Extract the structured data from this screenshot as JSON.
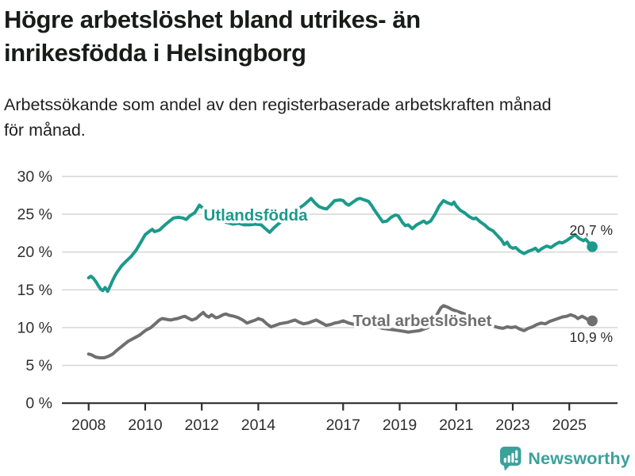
{
  "header": {
    "title": "Högre arbetslöshet bland utrikes- än\ninrikesfödda i Helsingborg",
    "subtitle": "Arbetssökande som andel av den registerbaserade arbetskraften månad\nför månad."
  },
  "chart_data": {
    "type": "line",
    "title": "Högre arbetslöshet bland utrikes- än inrikesfödda i Helsingborg",
    "subtitle": "Arbetssökande som andel av den registerbaserade arbetskraften månad för månad.",
    "grid": "horizontal",
    "legend_position": "inline-labels",
    "x_axis": {
      "ticks": [
        2008,
        2010,
        2012,
        2014,
        2017,
        2019,
        2021,
        2023,
        2025
      ],
      "range": [
        2007.1,
        2026.7
      ]
    },
    "y_axis": {
      "unit": "%",
      "range": [
        0,
        30
      ],
      "ticks": [
        {
          "value": 30,
          "label": "30 %"
        },
        {
          "value": 25,
          "label": "25 %"
        },
        {
          "value": 20,
          "label": "20 %"
        },
        {
          "value": 15,
          "label": "15 %"
        },
        {
          "value": 10,
          "label": "10 %"
        },
        {
          "value": 5,
          "label": "5 %"
        },
        {
          "value": 0,
          "label": "0 %"
        }
      ]
    },
    "series": [
      {
        "name": "Utlandsfödda",
        "color": "#1b9a8b",
        "end_label": "20,7 %",
        "end_value": 20.7,
        "points": [
          [
            2008.0,
            16.6
          ],
          [
            2008.08,
            16.8
          ],
          [
            2008.17,
            16.5
          ],
          [
            2008.25,
            16.1
          ],
          [
            2008.33,
            15.6
          ],
          [
            2008.42,
            15.1
          ],
          [
            2008.5,
            14.9
          ],
          [
            2008.58,
            15.3
          ],
          [
            2008.67,
            14.8
          ],
          [
            2008.75,
            15.4
          ],
          [
            2008.83,
            16.1
          ],
          [
            2008.92,
            16.8
          ],
          [
            2009.0,
            17.3
          ],
          [
            2009.17,
            18.2
          ],
          [
            2009.33,
            18.8
          ],
          [
            2009.5,
            19.4
          ],
          [
            2009.67,
            20.2
          ],
          [
            2009.83,
            21.2
          ],
          [
            2010.0,
            22.3
          ],
          [
            2010.17,
            22.8
          ],
          [
            2010.25,
            23.0
          ],
          [
            2010.33,
            22.7
          ],
          [
            2010.5,
            22.9
          ],
          [
            2010.67,
            23.5
          ],
          [
            2010.83,
            24.0
          ],
          [
            2011.0,
            24.5
          ],
          [
            2011.17,
            24.6
          ],
          [
            2011.33,
            24.5
          ],
          [
            2011.45,
            24.3
          ],
          [
            2011.58,
            24.8
          ],
          [
            2011.75,
            25.2
          ],
          [
            2011.92,
            26.2
          ],
          [
            2012.1,
            25.6
          ],
          [
            2012.3,
            25.0
          ],
          [
            2012.5,
            24.5
          ],
          [
            2012.7,
            24.1
          ],
          [
            2012.9,
            23.9
          ],
          [
            2013.1,
            23.7
          ],
          [
            2013.3,
            23.8
          ],
          [
            2013.5,
            23.6
          ],
          [
            2013.7,
            23.6
          ],
          [
            2013.9,
            23.7
          ],
          [
            2014.1,
            23.6
          ],
          [
            2014.25,
            23.1
          ],
          [
            2014.4,
            22.6
          ],
          [
            2014.55,
            23.2
          ],
          [
            2014.7,
            23.7
          ],
          [
            2014.85,
            24.1
          ],
          [
            2015.0,
            24.5
          ],
          [
            2015.2,
            25.1
          ],
          [
            2015.4,
            25.7
          ],
          [
            2015.6,
            26.2
          ],
          [
            2015.75,
            26.7
          ],
          [
            2015.87,
            27.1
          ],
          [
            2016.0,
            26.5
          ],
          [
            2016.15,
            26.0
          ],
          [
            2016.3,
            25.8
          ],
          [
            2016.42,
            25.7
          ],
          [
            2016.55,
            26.2
          ],
          [
            2016.7,
            26.8
          ],
          [
            2016.9,
            26.9
          ],
          [
            2017.0,
            26.8
          ],
          [
            2017.1,
            26.4
          ],
          [
            2017.2,
            26.2
          ],
          [
            2017.35,
            26.6
          ],
          [
            2017.5,
            27.0
          ],
          [
            2017.6,
            27.1
          ],
          [
            2017.75,
            26.9
          ],
          [
            2017.9,
            26.7
          ],
          [
            2018.0,
            26.2
          ],
          [
            2018.1,
            25.6
          ],
          [
            2018.25,
            24.8
          ],
          [
            2018.4,
            24.0
          ],
          [
            2018.55,
            24.1
          ],
          [
            2018.7,
            24.6
          ],
          [
            2018.85,
            24.9
          ],
          [
            2018.95,
            24.8
          ],
          [
            2019.1,
            23.9
          ],
          [
            2019.2,
            23.5
          ],
          [
            2019.3,
            23.6
          ],
          [
            2019.45,
            23.1
          ],
          [
            2019.6,
            23.6
          ],
          [
            2019.75,
            23.9
          ],
          [
            2019.85,
            24.1
          ],
          [
            2019.95,
            23.8
          ],
          [
            2020.1,
            24.1
          ],
          [
            2020.25,
            25.0
          ],
          [
            2020.4,
            26.1
          ],
          [
            2020.55,
            26.8
          ],
          [
            2020.7,
            26.5
          ],
          [
            2020.85,
            26.3
          ],
          [
            2020.92,
            26.6
          ],
          [
            2021.0,
            26.1
          ],
          [
            2021.15,
            25.5
          ],
          [
            2021.3,
            25.2
          ],
          [
            2021.45,
            24.7
          ],
          [
            2021.6,
            24.4
          ],
          [
            2021.7,
            24.5
          ],
          [
            2021.85,
            24.0
          ],
          [
            2022.0,
            23.6
          ],
          [
            2022.15,
            23.1
          ],
          [
            2022.3,
            22.8
          ],
          [
            2022.45,
            22.2
          ],
          [
            2022.6,
            21.6
          ],
          [
            2022.7,
            21.0
          ],
          [
            2022.8,
            21.3
          ],
          [
            2022.9,
            20.7
          ],
          [
            2023.0,
            20.5
          ],
          [
            2023.1,
            20.6
          ],
          [
            2023.25,
            20.1
          ],
          [
            2023.4,
            19.8
          ],
          [
            2023.55,
            20.1
          ],
          [
            2023.7,
            20.3
          ],
          [
            2023.8,
            20.5
          ],
          [
            2023.9,
            20.1
          ],
          [
            2024.05,
            20.5
          ],
          [
            2024.2,
            20.8
          ],
          [
            2024.35,
            20.6
          ],
          [
            2024.5,
            21.0
          ],
          [
            2024.65,
            21.3
          ],
          [
            2024.75,
            21.2
          ],
          [
            2024.9,
            21.5
          ],
          [
            2025.05,
            21.9
          ],
          [
            2025.2,
            22.3
          ],
          [
            2025.35,
            21.8
          ],
          [
            2025.5,
            21.5
          ],
          [
            2025.58,
            21.7
          ],
          [
            2025.67,
            21.3
          ],
          [
            2025.81,
            20.7
          ]
        ]
      },
      {
        "name": "Total arbetslöshet",
        "color": "#6f6f6f",
        "end_label": "10,9 %",
        "end_value": 10.9,
        "points": [
          [
            2008.0,
            6.5
          ],
          [
            2008.1,
            6.4
          ],
          [
            2008.25,
            6.1
          ],
          [
            2008.4,
            6.0
          ],
          [
            2008.55,
            6.0
          ],
          [
            2008.7,
            6.2
          ],
          [
            2008.85,
            6.5
          ],
          [
            2009.0,
            7.0
          ],
          [
            2009.2,
            7.6
          ],
          [
            2009.4,
            8.2
          ],
          [
            2009.6,
            8.6
          ],
          [
            2009.8,
            9.0
          ],
          [
            2010.0,
            9.6
          ],
          [
            2010.2,
            10.0
          ],
          [
            2010.35,
            10.5
          ],
          [
            2010.5,
            11.0
          ],
          [
            2010.6,
            11.2
          ],
          [
            2010.75,
            11.1
          ],
          [
            2010.9,
            11.0
          ],
          [
            2011.0,
            11.1
          ],
          [
            2011.15,
            11.2
          ],
          [
            2011.3,
            11.4
          ],
          [
            2011.4,
            11.5
          ],
          [
            2011.5,
            11.3
          ],
          [
            2011.65,
            11.0
          ],
          [
            2011.8,
            11.2
          ],
          [
            2011.95,
            11.7
          ],
          [
            2012.05,
            12.0
          ],
          [
            2012.15,
            11.6
          ],
          [
            2012.25,
            11.4
          ],
          [
            2012.35,
            11.7
          ],
          [
            2012.5,
            11.3
          ],
          [
            2012.6,
            11.4
          ],
          [
            2012.75,
            11.7
          ],
          [
            2012.85,
            11.8
          ],
          [
            2013.0,
            11.6
          ],
          [
            2013.15,
            11.5
          ],
          [
            2013.3,
            11.3
          ],
          [
            2013.45,
            11.0
          ],
          [
            2013.6,
            10.6
          ],
          [
            2013.75,
            10.8
          ],
          [
            2013.9,
            11.0
          ],
          [
            2014.0,
            11.2
          ],
          [
            2014.15,
            11.0
          ],
          [
            2014.3,
            10.5
          ],
          [
            2014.45,
            10.1
          ],
          [
            2014.6,
            10.3
          ],
          [
            2014.75,
            10.5
          ],
          [
            2014.9,
            10.6
          ],
          [
            2015.05,
            10.7
          ],
          [
            2015.2,
            10.9
          ],
          [
            2015.3,
            11.0
          ],
          [
            2015.45,
            10.7
          ],
          [
            2015.6,
            10.5
          ],
          [
            2015.75,
            10.6
          ],
          [
            2015.9,
            10.8
          ],
          [
            2016.05,
            11.0
          ],
          [
            2016.25,
            10.6
          ],
          [
            2016.4,
            10.3
          ],
          [
            2016.55,
            10.4
          ],
          [
            2016.7,
            10.6
          ],
          [
            2016.85,
            10.7
          ],
          [
            2017.0,
            10.9
          ],
          [
            2017.2,
            10.6
          ],
          [
            2017.4,
            10.4
          ],
          [
            2017.6,
            10.3
          ],
          [
            2017.8,
            10.4
          ],
          [
            2018.0,
            10.3
          ],
          [
            2018.2,
            10.1
          ],
          [
            2018.4,
            9.9
          ],
          [
            2018.6,
            9.8
          ],
          [
            2018.8,
            9.7
          ],
          [
            2019.0,
            9.6
          ],
          [
            2019.15,
            9.5
          ],
          [
            2019.3,
            9.4
          ],
          [
            2019.5,
            9.5
          ],
          [
            2019.7,
            9.6
          ],
          [
            2019.85,
            9.8
          ],
          [
            2020.0,
            10.0
          ],
          [
            2020.15,
            10.5
          ],
          [
            2020.3,
            11.6
          ],
          [
            2020.45,
            12.6
          ],
          [
            2020.55,
            12.9
          ],
          [
            2020.7,
            12.7
          ],
          [
            2020.85,
            12.4
          ],
          [
            2021.0,
            12.2
          ],
          [
            2021.15,
            12.0
          ],
          [
            2021.3,
            11.8
          ],
          [
            2021.5,
            11.4
          ],
          [
            2021.7,
            11.0
          ],
          [
            2021.9,
            10.7
          ],
          [
            2022.1,
            10.4
          ],
          [
            2022.3,
            10.2
          ],
          [
            2022.5,
            10.0
          ],
          [
            2022.65,
            9.9
          ],
          [
            2022.8,
            10.1
          ],
          [
            2022.95,
            10.0
          ],
          [
            2023.1,
            10.1
          ],
          [
            2023.25,
            9.8
          ],
          [
            2023.4,
            9.6
          ],
          [
            2023.55,
            9.9
          ],
          [
            2023.7,
            10.1
          ],
          [
            2023.85,
            10.4
          ],
          [
            2024.0,
            10.6
          ],
          [
            2024.15,
            10.5
          ],
          [
            2024.3,
            10.8
          ],
          [
            2024.45,
            11.0
          ],
          [
            2024.6,
            11.2
          ],
          [
            2024.75,
            11.4
          ],
          [
            2024.9,
            11.5
          ],
          [
            2025.05,
            11.7
          ],
          [
            2025.2,
            11.5
          ],
          [
            2025.3,
            11.2
          ],
          [
            2025.45,
            11.5
          ],
          [
            2025.6,
            11.2
          ],
          [
            2025.7,
            10.9
          ],
          [
            2025.81,
            10.9
          ]
        ]
      }
    ],
    "colors": {
      "grid": "#d9d9d9",
      "axis": "#2e2e2e",
      "tick_text": "#2f2f2f",
      "end_label_text": "#2b2b2b"
    }
  },
  "footer": {
    "brand": "Newsworthy",
    "brand_color": "#3ba19b"
  }
}
